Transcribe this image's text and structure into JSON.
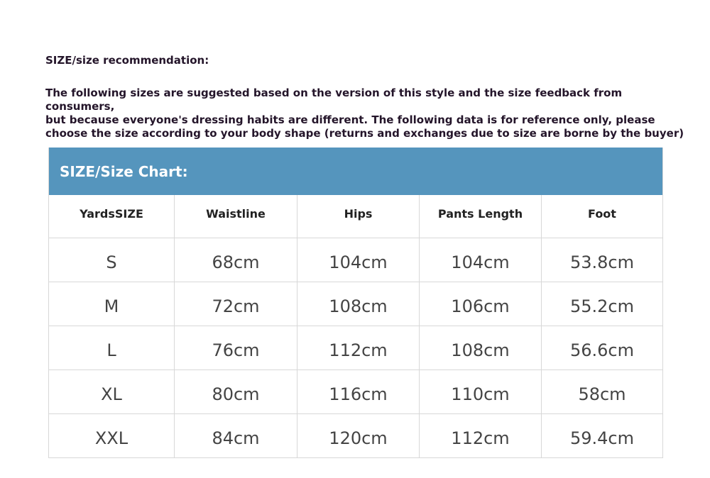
{
  "heading": "SIZE/size recommendation:",
  "paragraph": "The following sizes are suggested based on the version of this style and the size feedback from consumers,\nbut because everyone's dressing habits are different. The following data is for reference only, please\nchoose the size according to your body shape (returns and exchanges due to size are borne by the buyer)",
  "table": {
    "title": "SIZE/Size Chart:",
    "header_color": "#5595bd",
    "columns": [
      "YardsSIZE",
      "Waistline",
      "Hips",
      "Pants Length",
      "Foot"
    ],
    "rows": [
      [
        "S",
        "68cm",
        "104cm",
        "104cm",
        "53.8cm"
      ],
      [
        "M",
        "72cm",
        "108cm",
        "106cm",
        "55.2cm"
      ],
      [
        "L",
        "76cm",
        "112cm",
        "108cm",
        "56.6cm"
      ],
      [
        "XL",
        "80cm",
        "116cm",
        "110cm",
        "58cm"
      ],
      [
        "XXL",
        "84cm",
        "120cm",
        "112cm",
        "59.4cm"
      ]
    ]
  }
}
